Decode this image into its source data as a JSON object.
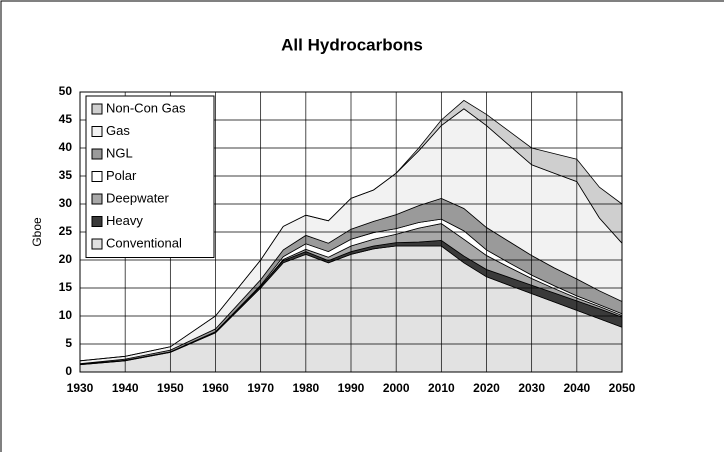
{
  "chart_data": {
    "type": "stacked_area",
    "title": "All Hydrocarbons",
    "y_label": "Gboe",
    "x": [
      1930,
      1940,
      1950,
      1960,
      1970,
      1975,
      1980,
      1985,
      1990,
      1995,
      2000,
      2005,
      2010,
      2015,
      2020,
      2025,
      2030,
      2035,
      2040,
      2045,
      2050
    ],
    "series": [
      {
        "name": "Conventional",
        "color": "#e2e2e2",
        "values": [
          1.3,
          2,
          3.5,
          7,
          15,
          19.5,
          21,
          19.5,
          21,
          22,
          22.5,
          22.5,
          22.5,
          19.5,
          17,
          15.5,
          14,
          12.5,
          11,
          9.5,
          8
        ]
      },
      {
        "name": "Heavy",
        "color": "#3a3a3a",
        "values": [
          0.1,
          0.1,
          0.1,
          0.2,
          0.3,
          0.4,
          0.5,
          0.4,
          0.5,
          0.5,
          0.6,
          0.7,
          1,
          1.2,
          1.3,
          1.4,
          1.5,
          1.6,
          1.7,
          1.8,
          1.8
        ]
      },
      {
        "name": "Deepwater",
        "color": "#a8a8a8",
        "values": [
          0,
          0,
          0,
          0,
          0,
          0.2,
          0.4,
          0.6,
          1,
          1.2,
          1.5,
          2.5,
          3,
          3,
          2.5,
          1.8,
          1.2,
          0.8,
          0.5,
          0.4,
          0.3
        ]
      },
      {
        "name": "Polar",
        "color": "#ffffff",
        "values": [
          0,
          0,
          0,
          0,
          0.2,
          0.5,
          1,
          1,
          1.2,
          1.2,
          1,
          1,
          0.8,
          1.5,
          1,
          0.8,
          0.6,
          0.5,
          0.4,
          0.3,
          0.3
        ]
      },
      {
        "name": "NGL",
        "color": "#9a9a9a",
        "values": [
          0.1,
          0.2,
          0.3,
          0.5,
          1,
          1.2,
          1.5,
          1.5,
          1.8,
          2,
          2.5,
          3,
          3.7,
          4,
          4,
          3.8,
          3.5,
          3.2,
          3,
          2.5,
          2.2
        ]
      },
      {
        "name": "Gas",
        "color": "#f2f2f2",
        "values": [
          0.5,
          0.5,
          0.6,
          2.3,
          3.5,
          4.2,
          3.6,
          4,
          5.5,
          5.6,
          7.4,
          9.8,
          13,
          17.8,
          18.2,
          17.2,
          16.2,
          16.9,
          17.4,
          13,
          10.4
        ]
      },
      {
        "name": "Non-Con Gas",
        "color": "#cfcfcf",
        "values": [
          0,
          0,
          0,
          0,
          0,
          0,
          0,
          0,
          0,
          0,
          0,
          0.5,
          1,
          1.5,
          2,
          2.5,
          3,
          3.5,
          4,
          5.5,
          7
        ]
      }
    ],
    "xlim": [
      1930,
      2050
    ],
    "xticks": [
      1930,
      1940,
      1950,
      1960,
      1970,
      1980,
      1990,
      2000,
      2010,
      2020,
      2030,
      2040,
      2050
    ],
    "ylim": [
      0,
      50
    ],
    "yticks": [
      0,
      5,
      10,
      15,
      20,
      25,
      30,
      35,
      40,
      45,
      50
    ],
    "grid": true,
    "legend": "top-left"
  }
}
